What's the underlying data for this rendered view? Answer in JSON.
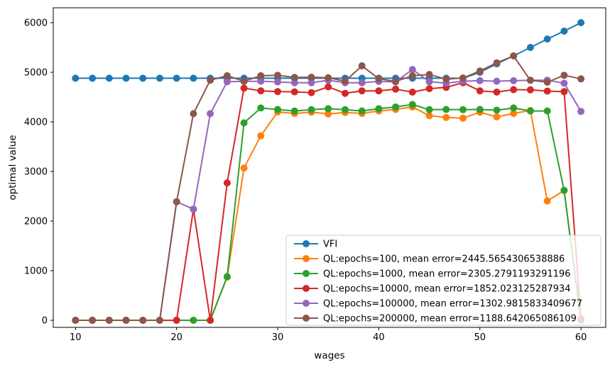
{
  "figure": {
    "background": "#ffffff"
  },
  "chart_data": {
    "type": "line",
    "title": "",
    "xlabel": "wages",
    "ylabel": "optimal value",
    "grid": false,
    "legend_position": "lower right",
    "xticks": [
      10,
      20,
      30,
      40,
      50,
      60
    ],
    "yticks": [
      0,
      1000,
      2000,
      3000,
      4000,
      5000,
      6000
    ],
    "xlim": [
      7.8,
      62.45
    ],
    "ylim": [
      -143,
      6300
    ],
    "x": [
      10,
      11.667,
      13.333,
      15,
      16.667,
      18.333,
      20,
      21.667,
      23.333,
      25,
      26.667,
      28.333,
      30,
      31.667,
      33.333,
      35,
      36.667,
      38.333,
      40,
      41.667,
      43.333,
      45,
      46.667,
      48.333,
      50,
      51.667,
      53.333,
      55,
      56.667,
      58.333,
      60
    ],
    "series": [
      {
        "name": "VFI",
        "color": "#1f77b4",
        "marker": "circle",
        "values": [
          4880,
          4880,
          4880,
          4880,
          4880,
          4880,
          4880,
          4880,
          4880,
          4880,
          4880,
          4880,
          4880,
          4880,
          4880,
          4880,
          4880,
          4880,
          4880,
          4880,
          4880,
          4880,
          4880,
          4880,
          5000,
          5170,
          5330,
          5500,
          5670,
          5830,
          6000
        ]
      },
      {
        "name": "QL:epochs=100, mean error=2445.5654306538886",
        "color": "#ff7f0e",
        "marker": "circle",
        "values": [
          0,
          0,
          0,
          0,
          0,
          0,
          0,
          0,
          0,
          870,
          3070,
          3720,
          4200,
          4170,
          4195,
          4160,
          4190,
          4170,
          4220,
          4250,
          4300,
          4125,
          4090,
          4075,
          4195,
          4100,
          4170,
          4230,
          2405,
          2615,
          0
        ]
      },
      {
        "name": "QL:epochs=1000, mean error=2305.2791193291196",
        "color": "#2ca02c",
        "marker": "circle",
        "values": [
          0,
          0,
          0,
          0,
          0,
          0,
          0,
          0,
          0,
          880,
          3980,
          4280,
          4250,
          4220,
          4245,
          4265,
          4245,
          4220,
          4265,
          4300,
          4350,
          4245,
          4250,
          4245,
          4250,
          4235,
          4280,
          4220,
          4220,
          2620,
          0
        ]
      },
      {
        "name": "QL:epochs=10000, mean error=1852.023125287934",
        "color": "#d62728",
        "marker": "circle",
        "values": [
          0,
          0,
          0,
          0,
          0,
          0,
          0,
          2240,
          0,
          2770,
          4680,
          4625,
          4610,
          4605,
          4590,
          4705,
          4575,
          4625,
          4625,
          4660,
          4600,
          4670,
          4695,
          4790,
          4625,
          4600,
          4650,
          4645,
          4620,
          4610,
          30
        ]
      },
      {
        "name": "QL:epochs=100000, mean error=1302.9815833409677",
        "color": "#9467bd",
        "marker": "circle",
        "values": [
          0,
          0,
          0,
          0,
          0,
          0,
          2390,
          2240,
          4165,
          4810,
          4815,
          4820,
          4805,
          4790,
          4790,
          4840,
          4790,
          4790,
          4815,
          4805,
          5055,
          4810,
          4780,
          4820,
          4830,
          4820,
          4830,
          4840,
          4840,
          4780,
          4210
        ]
      },
      {
        "name": "QL:epochs=200000, mean error=1188.642065086109",
        "color": "#8c564b",
        "marker": "circle",
        "values": [
          0,
          0,
          0,
          0,
          0,
          0,
          2390,
          4165,
          4840,
          4930,
          4820,
          4930,
          4940,
          4895,
          4900,
          4890,
          4820,
          5130,
          4870,
          4815,
          4930,
          4955,
          4860,
          4886,
          5025,
          5190,
          5330,
          4838,
          4800,
          4940,
          4867
        ]
      }
    ]
  }
}
